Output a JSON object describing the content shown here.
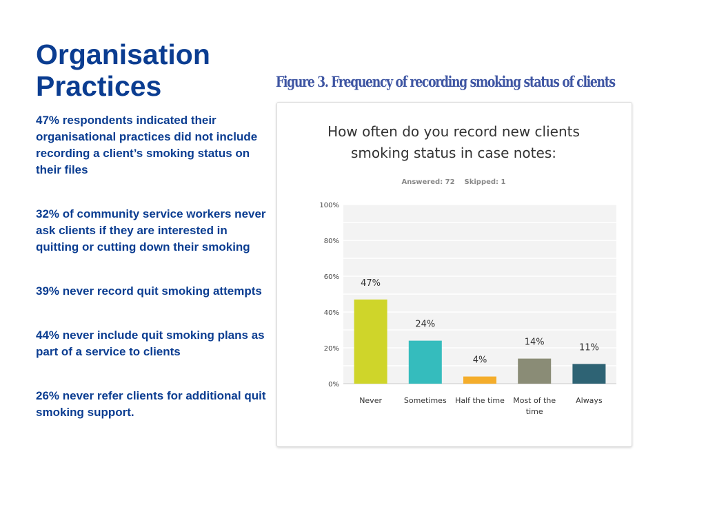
{
  "slide": {
    "title_line1": "Organisation",
    "title_line2": "Practices",
    "bullets": [
      "47% respondents indicated their organisational practices did not include recording a client’s smoking status on their files",
      "32% of community service workers never ask clients if they are interested in quitting or cutting down their smoking",
      "39% never record quit smoking attempts",
      "44% never include quit smoking plans as part of a service to clients",
      "26% never refer clients for additional quit smoking support."
    ]
  },
  "figure": {
    "caption": "Figure 3. Frequency of recording smoking status of clients"
  },
  "chart_data": {
    "type": "bar",
    "title": "How often do you record new clients smoking status in case notes:",
    "title_lines": [
      "How often do you record new clients",
      "smoking status in case notes:"
    ],
    "subtitle": "Answered: 72    Skipped: 1",
    "categories": [
      "Never",
      "Sometimes",
      "Half the time",
      "Most of the time",
      "Always"
    ],
    "category_lines": [
      [
        "Never"
      ],
      [
        "Sometimes"
      ],
      [
        "Half the time"
      ],
      [
        "Most of the",
        "time"
      ],
      [
        "Always"
      ]
    ],
    "values": [
      47,
      24,
      4,
      14,
      11
    ],
    "data_labels": [
      "47%",
      "24%",
      "4%",
      "14%",
      "11%"
    ],
    "bar_colors": [
      "#cfd52a",
      "#35bcbd",
      "#f4ad2b",
      "#8a8c76",
      "#2e6374"
    ],
    "ylim": [
      0,
      100
    ],
    "y_ticks": [
      0,
      20,
      40,
      60,
      80,
      100
    ],
    "y_tick_labels": [
      "0%",
      "20%",
      "40%",
      "60%",
      "80%",
      "100%"
    ],
    "grid": true,
    "xlabel": "",
    "ylabel": ""
  }
}
